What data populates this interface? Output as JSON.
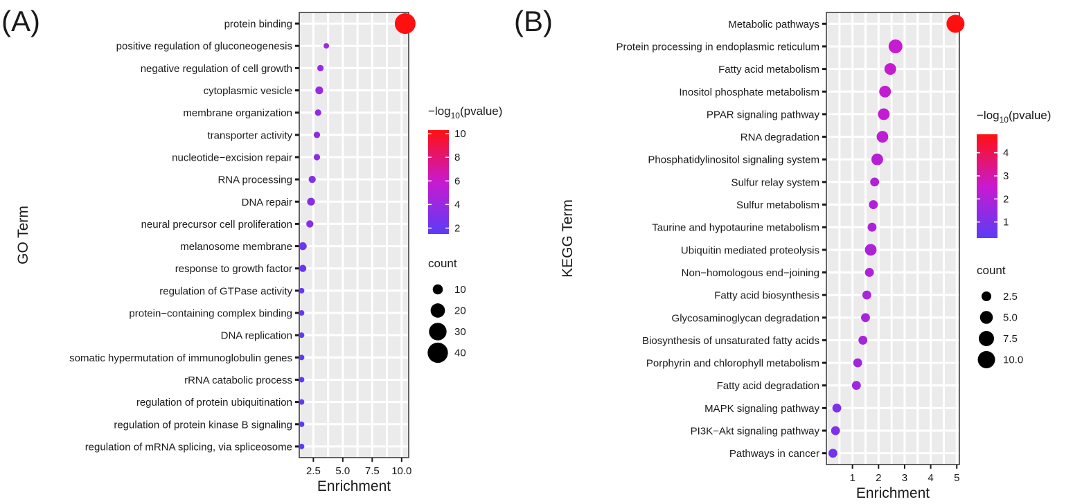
{
  "colors": {
    "panel_bg": "#ebebeb",
    "grid": "#ffffff",
    "low": "#5b3cf5",
    "high": "#ff1010",
    "tick": "#1a1a1a"
  },
  "chart_data": [
    {
      "panel_label": "(A)",
      "type": "scatter",
      "xlabel": "Enrichment",
      "ylabel": "GO Term",
      "xlim": [
        1.3,
        10.6
      ],
      "xticks": [
        2.5,
        5.0,
        7.5,
        10.0
      ],
      "xtick_labels": [
        "2.5",
        "5.0",
        "7.5",
        "10.0"
      ],
      "color_title_prefix": "−log",
      "color_title_sub": "10",
      "color_title_suffix": "(pvalue)",
      "color_range": [
        1.5,
        10.3
      ],
      "color_ticks": [
        2,
        4,
        6,
        8,
        10
      ],
      "color_tick_labels": [
        "2",
        "4",
        "6",
        "8",
        "10"
      ],
      "size_title": "count",
      "size_range": [
        3,
        42
      ],
      "size_legend": [
        10,
        20,
        30,
        40
      ],
      "size_legend_labels": [
        "10",
        "20",
        "30",
        "40"
      ],
      "terms": [
        {
          "label": "protein binding",
          "enrichment": 10.3,
          "pvalue_log": 10.3,
          "count": 42
        },
        {
          "label": "positive regulation of gluconeogenesis",
          "enrichment": 3.6,
          "pvalue_log": 4.0,
          "count": 3
        },
        {
          "label": "negative regulation of cell growth",
          "enrichment": 3.1,
          "pvalue_log": 4.0,
          "count": 4
        },
        {
          "label": "cytoplasmic vesicle",
          "enrichment": 3.0,
          "pvalue_log": 4.0,
          "count": 6
        },
        {
          "label": "membrane organization",
          "enrichment": 2.9,
          "pvalue_log": 3.8,
          "count": 4
        },
        {
          "label": "transporter activity",
          "enrichment": 2.8,
          "pvalue_log": 3.6,
          "count": 4
        },
        {
          "label": "nucleotide−excision repair",
          "enrichment": 2.8,
          "pvalue_log": 3.6,
          "count": 4
        },
        {
          "label": "RNA processing",
          "enrichment": 2.4,
          "pvalue_log": 3.1,
          "count": 5
        },
        {
          "label": "DNA repair",
          "enrichment": 2.3,
          "pvalue_log": 3.2,
          "count": 6
        },
        {
          "label": "neural precursor cell proliferation",
          "enrichment": 2.2,
          "pvalue_log": 3.3,
          "count": 5
        },
        {
          "label": "melanosome membrane",
          "enrichment": 1.6,
          "pvalue_log": 2.2,
          "count": 6
        },
        {
          "label": "response to growth factor",
          "enrichment": 1.6,
          "pvalue_log": 2.1,
          "count": 5
        },
        {
          "label": "regulation of GTPase activity",
          "enrichment": 1.5,
          "pvalue_log": 1.9,
          "count": 3
        },
        {
          "label": "protein−containing complex binding",
          "enrichment": 1.5,
          "pvalue_log": 1.9,
          "count": 3
        },
        {
          "label": "DNA replication",
          "enrichment": 1.5,
          "pvalue_log": 1.9,
          "count": 3
        },
        {
          "label": "somatic hypermutation of immunoglobulin genes",
          "enrichment": 1.5,
          "pvalue_log": 1.8,
          "count": 3
        },
        {
          "label": "rRNA catabolic process",
          "enrichment": 1.5,
          "pvalue_log": 1.8,
          "count": 3
        },
        {
          "label": "regulation of protein ubiquitination",
          "enrichment": 1.5,
          "pvalue_log": 1.8,
          "count": 3
        },
        {
          "label": "regulation of protein kinase B signaling",
          "enrichment": 1.5,
          "pvalue_log": 1.7,
          "count": 3
        },
        {
          "label": "regulation of mRNA splicing, via spliceosome",
          "enrichment": 1.5,
          "pvalue_log": 1.7,
          "count": 3
        }
      ]
    },
    {
      "panel_label": "(B)",
      "type": "scatter",
      "xlabel": "Enrichment",
      "ylabel": "KEGG Term",
      "xlim": [
        0,
        5.1
      ],
      "xticks": [
        1,
        2,
        3,
        4,
        5
      ],
      "xtick_labels": [
        "1",
        "2",
        "3",
        "4",
        "5"
      ],
      "color_title_prefix": "−log",
      "color_title_sub": "10",
      "color_title_suffix": "(pvalue)",
      "color_range": [
        0.3,
        4.8
      ],
      "color_ticks": [
        1,
        2,
        3,
        4
      ],
      "color_tick_labels": [
        "1",
        "2",
        "3",
        "4"
      ],
      "size_title": "count",
      "size_range": [
        1,
        11
      ],
      "size_legend": [
        2.5,
        5.0,
        7.5,
        10.0
      ],
      "size_legend_labels": [
        "2.5",
        "5.0",
        "7.5",
        "10.0"
      ],
      "terms": [
        {
          "label": "Metabolic pathways",
          "enrichment": 4.95,
          "pvalue_log": 4.8,
          "count": 11
        },
        {
          "label": "Protein processing in endoplasmic reticulum",
          "enrichment": 2.65,
          "pvalue_log": 2.5,
          "count": 6
        },
        {
          "label": "Fatty acid metabolism",
          "enrichment": 2.45,
          "pvalue_log": 2.5,
          "count": 4
        },
        {
          "label": "Inositol phosphate metabolism",
          "enrichment": 2.25,
          "pvalue_log": 2.4,
          "count": 4
        },
        {
          "label": "PPAR signaling pathway",
          "enrichment": 2.2,
          "pvalue_log": 2.4,
          "count": 4
        },
        {
          "label": "RNA degradation",
          "enrichment": 2.15,
          "pvalue_log": 2.3,
          "count": 4
        },
        {
          "label": "Phosphatidylinositol signaling system",
          "enrichment": 1.95,
          "pvalue_log": 2.2,
          "count": 4
        },
        {
          "label": "Sulfur relay system",
          "enrichment": 1.85,
          "pvalue_log": 2.1,
          "count": 2
        },
        {
          "label": "Sulfur metabolism",
          "enrichment": 1.8,
          "pvalue_log": 2.1,
          "count": 2
        },
        {
          "label": "Taurine and hypotaurine metabolism",
          "enrichment": 1.75,
          "pvalue_log": 2.0,
          "count": 2
        },
        {
          "label": "Ubiquitin mediated proteolysis",
          "enrichment": 1.7,
          "pvalue_log": 2.0,
          "count": 4
        },
        {
          "label": "Non−homologous end−joining",
          "enrichment": 1.65,
          "pvalue_log": 2.0,
          "count": 2
        },
        {
          "label": "Fatty acid biosynthesis",
          "enrichment": 1.55,
          "pvalue_log": 1.9,
          "count": 2
        },
        {
          "label": "Glycosaminoglycan degradation",
          "enrichment": 1.5,
          "pvalue_log": 1.9,
          "count": 2
        },
        {
          "label": "Biosynthesis of unsaturated fatty acids",
          "enrichment": 1.4,
          "pvalue_log": 1.8,
          "count": 2
        },
        {
          "label": "Porphyrin and chlorophyll metabolism",
          "enrichment": 1.2,
          "pvalue_log": 1.7,
          "count": 2
        },
        {
          "label": "Fatty acid degradation",
          "enrichment": 1.15,
          "pvalue_log": 1.7,
          "count": 2
        },
        {
          "label": "MAPK signaling pathway",
          "enrichment": 0.4,
          "pvalue_log": 1.0,
          "count": 2
        },
        {
          "label": "PI3K−Akt signaling pathway",
          "enrichment": 0.35,
          "pvalue_log": 1.0,
          "count": 2
        },
        {
          "label": "Pathways in cancer",
          "enrichment": 0.25,
          "pvalue_log": 0.8,
          "count": 2
        }
      ]
    }
  ]
}
